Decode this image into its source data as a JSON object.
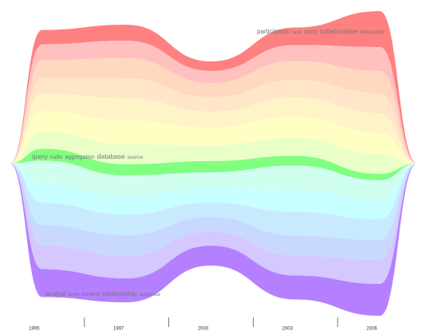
{
  "chart_data": {
    "type": "streamgraph",
    "x": [
      "1995",
      "1997",
      "2000",
      "2003",
      "2006"
    ],
    "series": [
      {
        "color": "#ff8080",
        "values": [
          18,
          20,
          12,
          22,
          45
        ],
        "keywords": [
          "participants",
          "task",
          "study",
          "collaborative",
          "interaction"
        ]
      },
      {
        "color": "#ffc0c0",
        "values": [
          20,
          22,
          15,
          20,
          30
        ]
      },
      {
        "color": "#ffd8c0",
        "values": [
          22,
          25,
          18,
          24,
          28
        ]
      },
      {
        "color": "#ffe6c8",
        "values": [
          20,
          25,
          18,
          22,
          25
        ]
      },
      {
        "color": "#fff4c8",
        "values": [
          22,
          28,
          20,
          24,
          25
        ]
      },
      {
        "color": "#ffffc4",
        "values": [
          25,
          30,
          22,
          26,
          26
        ]
      },
      {
        "color": "#eaffc8",
        "values": [
          22,
          25,
          20,
          23,
          25
        ]
      },
      {
        "color": "#80ff80",
        "values": [
          15,
          14,
          14,
          12,
          8
        ],
        "keywords": [
          "query",
          "traffic",
          "aggregation",
          "database",
          "source"
        ]
      },
      {
        "color": "#d0fff0",
        "values": [
          28,
          25,
          20,
          30,
          25
        ]
      },
      {
        "color": "#c8ffff",
        "values": [
          25,
          24,
          18,
          28,
          24
        ]
      },
      {
        "color": "#c8eaff",
        "values": [
          28,
          26,
          18,
          30,
          26
        ]
      },
      {
        "color": "#c8d8ff",
        "values": [
          25,
          26,
          18,
          25,
          25
        ]
      },
      {
        "color": "#d4c8ff",
        "values": [
          30,
          28,
          18,
          25,
          30
        ]
      },
      {
        "color": "#b480ff",
        "values": [
          35,
          30,
          25,
          30,
          40
        ],
        "keywords": [
          "analyst",
          "entry",
          "context",
          "relationship",
          "evidence"
        ]
      }
    ]
  }
}
